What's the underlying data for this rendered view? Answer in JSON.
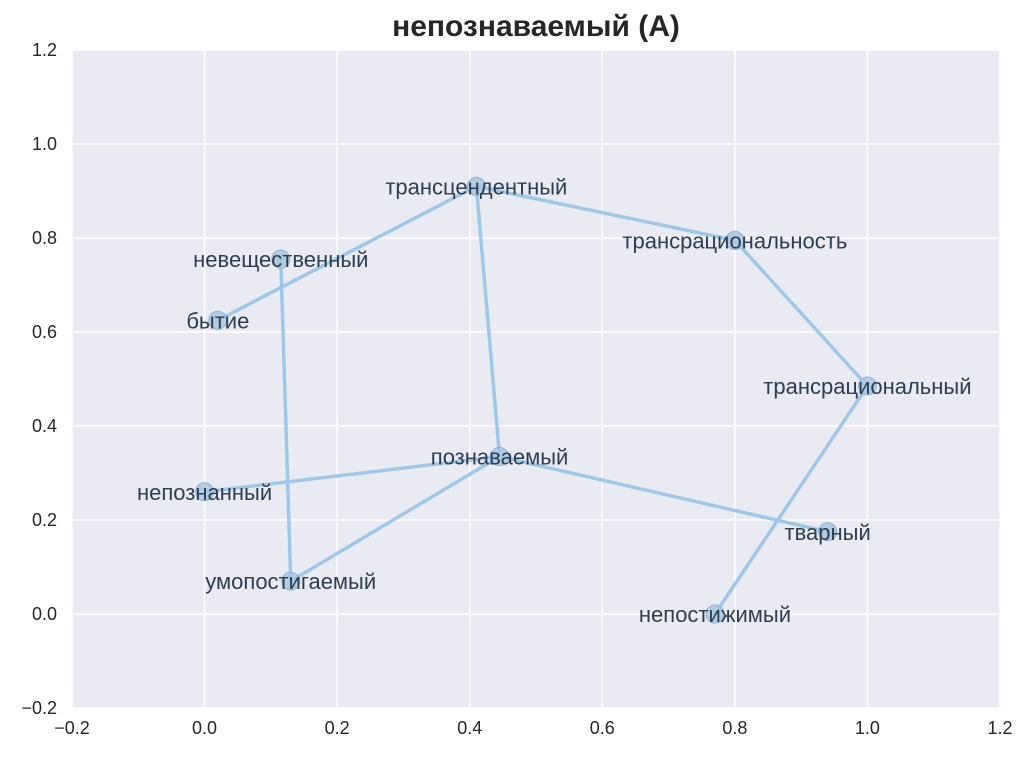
{
  "chart_data": {
    "type": "scatter",
    "title": "непознаваемый (A)",
    "xlim": [
      -0.2,
      1.2
    ],
    "ylim": [
      -0.2,
      1.2
    ],
    "xticks": [
      -0.2,
      0.0,
      0.2,
      0.4,
      0.6,
      0.8,
      1.0,
      1.2
    ],
    "yticks": [
      -0.2,
      0.0,
      0.2,
      0.4,
      0.6,
      0.8,
      1.0,
      1.2
    ],
    "xtick_labels": [
      "−0.2",
      "0.0",
      "0.2",
      "0.4",
      "0.6",
      "0.8",
      "1.0",
      "1.2"
    ],
    "ytick_labels": [
      "−0.2",
      "0.0",
      "0.2",
      "0.4",
      "0.6",
      "0.8",
      "1.0",
      "1.2"
    ],
    "grid": true,
    "colors": {
      "background": "#eaeaf2",
      "grid": "#ffffff",
      "edge": "#9fc8e8",
      "marker": "#a9c6e0",
      "label": "#2c3e50"
    },
    "nodes": [
      {
        "label": "трансцендентный",
        "x": 0.41,
        "y": 0.91
      },
      {
        "label": "трансрациональность",
        "x": 0.8,
        "y": 0.795
      },
      {
        "label": "невещественный",
        "x": 0.115,
        "y": 0.755
      },
      {
        "label": "бытие",
        "x": 0.02,
        "y": 0.625
      },
      {
        "label": "трансрациональный",
        "x": 1.0,
        "y": 0.485
      },
      {
        "label": "познаваемый",
        "x": 0.445,
        "y": 0.335
      },
      {
        "label": "непознанный",
        "x": 0.0,
        "y": 0.26
      },
      {
        "label": "тварный",
        "x": 0.94,
        "y": 0.175
      },
      {
        "label": "умопостигаемый",
        "x": 0.13,
        "y": 0.07
      },
      {
        "label": "непостижимый",
        "x": 0.77,
        "y": 0.0
      }
    ],
    "edges": [
      [
        "бытие",
        "трансцендентный"
      ],
      [
        "трансцендентный",
        "трансрациональность"
      ],
      [
        "трансцендентный",
        "познаваемый"
      ],
      [
        "трансрациональность",
        "трансрациональный"
      ],
      [
        "трансрациональный",
        "непостижимый"
      ],
      [
        "невещественный",
        "умопостигаемый"
      ],
      [
        "умопостигаемый",
        "познаваемый"
      ],
      [
        "непознанный",
        "познаваемый"
      ],
      [
        "познаваемый",
        "тварный"
      ]
    ]
  }
}
